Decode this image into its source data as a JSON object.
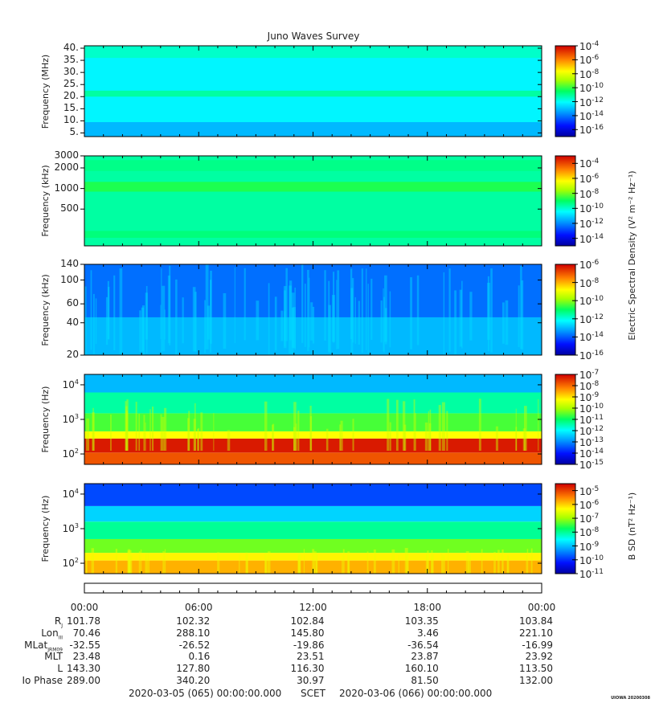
{
  "title": "Juno Waves Survey",
  "footer": {
    "left": "2020-03-05 (065) 00:00:00.000",
    "mid": "SCET",
    "right": "2020-03-06 (066) 00:00:00.000",
    "stamp": "UIOWA 20200308"
  },
  "colorbar_labels": {
    "esd": "Electric Spectral Density (V² m⁻² Hz⁻¹)",
    "bsd": "B SD (nT² Hz⁻¹)"
  },
  "chart_data": [
    {
      "type": "heatmap",
      "name": "panel-1",
      "ylabel": "Frequency (MHz)",
      "yscale": "linear",
      "ylim": [
        3.5,
        41
      ],
      "yticks": [
        5,
        10,
        15,
        20,
        25,
        30,
        35,
        40
      ],
      "ytick_labels": [
        "5.",
        "10.",
        "15.",
        "20.",
        "25.",
        "30.",
        "35.",
        "40."
      ],
      "colorbar": {
        "log10_range": [
          -17,
          -4
        ],
        "tick_exps": [
          -4,
          -6,
          -8,
          -10,
          -12,
          -14,
          -16
        ],
        "tick_labels": [
          "-4",
          "-6",
          "-8",
          "-10",
          "-12",
          "-14",
          "-16"
        ]
      },
      "bands": [
        {
          "level": 0.4,
          "ylim": [
            3.5,
            41
          ]
        },
        {
          "level": 0.3,
          "ylim": [
            3.5,
            9.5
          ]
        },
        {
          "level": 0.37,
          "ylim": [
            9.5,
            20
          ]
        },
        {
          "level": 0.45,
          "ylim": [
            20,
            22.5
          ]
        },
        {
          "level": 0.37,
          "ylim": [
            22.5,
            36
          ]
        },
        {
          "level": 0.42,
          "ylim": [
            36,
            41
          ]
        }
      ]
    },
    {
      "type": "heatmap",
      "name": "panel-2",
      "ylabel": "Frequency (kHz)",
      "yscale": "log",
      "ylim": [
        145,
        3000
      ],
      "yticks": [
        500,
        1000,
        2000,
        3000
      ],
      "ytick_labels": [
        "500",
        "1000",
        "2000",
        "3000"
      ],
      "colorbar": {
        "log10_range": [
          -15,
          -3
        ],
        "tick_exps": [
          -4,
          -6,
          -8,
          -10,
          -12,
          -14
        ],
        "tick_labels": [
          "-4",
          "-6",
          "-8",
          "-10",
          "-12",
          "-14"
        ]
      },
      "bands": [
        {
          "level": 0.45,
          "ylim": [
            145,
            3000
          ]
        },
        {
          "level": 0.48,
          "ylim": [
            190,
            240
          ]
        },
        {
          "level": 0.52,
          "ylim": [
            900,
            1250
          ]
        },
        {
          "level": 0.47,
          "ylim": [
            1800,
            2600
          ]
        }
      ]
    },
    {
      "type": "heatmap",
      "name": "panel-3",
      "ylabel": "Frequency (kHz)",
      "yscale": "log",
      "ylim": [
        20,
        140
      ],
      "yticks": [
        20,
        40,
        60,
        100,
        140
      ],
      "ytick_labels": [
        "20",
        "40",
        "60",
        "100",
        "140"
      ],
      "colorbar": {
        "log10_range": [
          -16,
          -6
        ],
        "tick_exps": [
          -6,
          -8,
          -10,
          -12,
          -14,
          -16
        ],
        "tick_labels": [
          "-6",
          "-8",
          "-10",
          "-12",
          "-14",
          "-16"
        ]
      },
      "bands": [
        {
          "level": 0.22,
          "ylim": [
            20,
            140
          ]
        },
        {
          "level": 0.3,
          "ylim": [
            20,
            45
          ]
        }
      ]
    },
    {
      "type": "heatmap",
      "name": "panel-4",
      "ylabel": "Frequency (Hz)",
      "yscale": "log",
      "ylim": [
        50,
        20000
      ],
      "yticks": [
        100,
        1000,
        10000
      ],
      "ytick_labels": [
        "10",
        "10",
        "10"
      ],
      "ytick_exps": [
        "2",
        "3",
        "4"
      ],
      "colorbar": {
        "log10_range": [
          -15,
          -7
        ],
        "tick_exps": [
          -7,
          -8,
          -9,
          -10,
          -11,
          -12,
          -13,
          -14,
          -15
        ],
        "tick_labels": [
          "-7",
          "-8",
          "-9",
          "-10",
          "-11",
          "-12",
          "-13",
          "-14",
          "-15"
        ]
      },
      "bands": [
        {
          "level": 0.9,
          "ylim": [
            50,
            110
          ]
        },
        {
          "level": 0.97,
          "ylim": [
            110,
            280
          ]
        },
        {
          "level": 0.72,
          "ylim": [
            280,
            450
          ]
        },
        {
          "level": 0.55,
          "ylim": [
            450,
            1500
          ]
        },
        {
          "level": 0.45,
          "ylim": [
            1500,
            6000
          ]
        },
        {
          "level": 0.3,
          "ylim": [
            6000,
            20000
          ]
        }
      ]
    },
    {
      "type": "heatmap",
      "name": "panel-5",
      "ylabel": "Frequency (Hz)",
      "yscale": "log",
      "ylim": [
        50,
        20000
      ],
      "yticks": [
        100,
        1000,
        10000
      ],
      "ytick_labels": [
        "10",
        "10",
        "10"
      ],
      "ytick_exps": [
        "2",
        "3",
        "4"
      ],
      "colorbar": {
        "log10_range": [
          -11,
          -4.5
        ],
        "tick_exps": [
          -5,
          -6,
          -7,
          -8,
          -9,
          -10,
          -11
        ],
        "tick_labels": [
          "-5",
          "-6",
          "-7",
          "-8",
          "-9",
          "-10",
          "-11"
        ]
      },
      "bands": [
        {
          "level": 0.8,
          "ylim": [
            50,
            120
          ]
        },
        {
          "level": 0.73,
          "ylim": [
            120,
            200
          ]
        },
        {
          "level": 0.58,
          "ylim": [
            200,
            500
          ]
        },
        {
          "level": 0.46,
          "ylim": [
            500,
            1600
          ]
        },
        {
          "level": 0.33,
          "ylim": [
            1600,
            4500
          ]
        },
        {
          "level": 0.18,
          "ylim": [
            4500,
            20000
          ]
        }
      ]
    }
  ],
  "ephemeris": {
    "rows": [
      {
        "label": "R",
        "sub": "J",
        "values": [
          "101.78",
          "102.32",
          "102.84",
          "103.35",
          "103.84"
        ]
      },
      {
        "label": "Lon",
        "sub": "III",
        "values": [
          "70.46",
          "288.10",
          "145.80",
          "3.46",
          "221.10"
        ]
      },
      {
        "label": "MLat",
        "sub": "JRM09",
        "values": [
          "-32.55",
          "-26.52",
          "-19.86",
          "-36.54",
          "-16.99"
        ]
      },
      {
        "label": "MLT",
        "sub": "",
        "values": [
          "23.48",
          "0.16",
          "23.51",
          "23.87",
          "23.92"
        ]
      },
      {
        "label": "L",
        "sub": "",
        "values": [
          "143.30",
          "127.80",
          "116.30",
          "160.10",
          "113.50"
        ]
      },
      {
        "label": "Io Phase",
        "sub": "",
        "values": [
          "289.00",
          "340.20",
          "30.97",
          "81.50",
          "132.00"
        ]
      }
    ],
    "times": [
      "00:00",
      "06:00",
      "12:00",
      "18:00",
      "00:00"
    ]
  }
}
